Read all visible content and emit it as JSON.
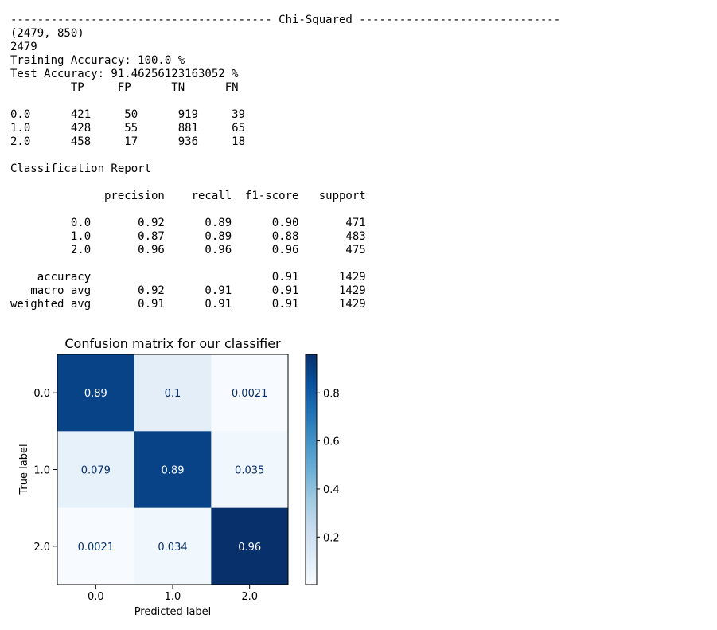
{
  "console": {
    "lines": [
      "--------------------------------------- Chi-Squared ------------------------------",
      "(2479, 850)",
      "2479",
      "Training Accuracy: 100.0 %",
      "Test Accuracy: 91.46256123163052 %",
      "         TP     FP      TN      FN",
      "",
      "0.0      421     50      919     39",
      "1.0      428     55      881     65",
      "2.0      458     17      936     18",
      "",
      "Classification Report",
      "",
      "              precision    recall  f1-score   support",
      "",
      "         0.0       0.92      0.89      0.90       471",
      "         1.0       0.87      0.89      0.88       483",
      "         2.0       0.96      0.96      0.96       475",
      "",
      "    accuracy                           0.91      1429",
      "   macro avg       0.92      0.91      0.91      1429",
      "weighted avg       0.91      0.91      0.91      1429"
    ]
  },
  "chart_data": {
    "type": "heatmap",
    "title": "Confusion matrix for our classifier",
    "xlabel": "Predicted label",
    "ylabel": "True label",
    "x_categories": [
      "0.0",
      "1.0",
      "2.0"
    ],
    "y_categories": [
      "0.0",
      "1.0",
      "2.0"
    ],
    "values": [
      [
        0.89,
        0.1,
        0.0021
      ],
      [
        0.079,
        0.89,
        0.035
      ],
      [
        0.0021,
        0.034,
        0.96
      ]
    ],
    "cell_labels": [
      [
        "0.89",
        "0.1",
        "0.0021"
      ],
      [
        "0.079",
        "0.89",
        "0.035"
      ],
      [
        "0.0021",
        "0.034",
        "0.96"
      ]
    ],
    "colormap": "Blues",
    "colorbar": {
      "range": [
        0.0021,
        0.96
      ],
      "ticks": [
        0.2,
        0.4,
        0.6,
        0.8
      ],
      "tick_labels": [
        "0.2",
        "0.4",
        "0.6",
        "0.8"
      ]
    }
  }
}
